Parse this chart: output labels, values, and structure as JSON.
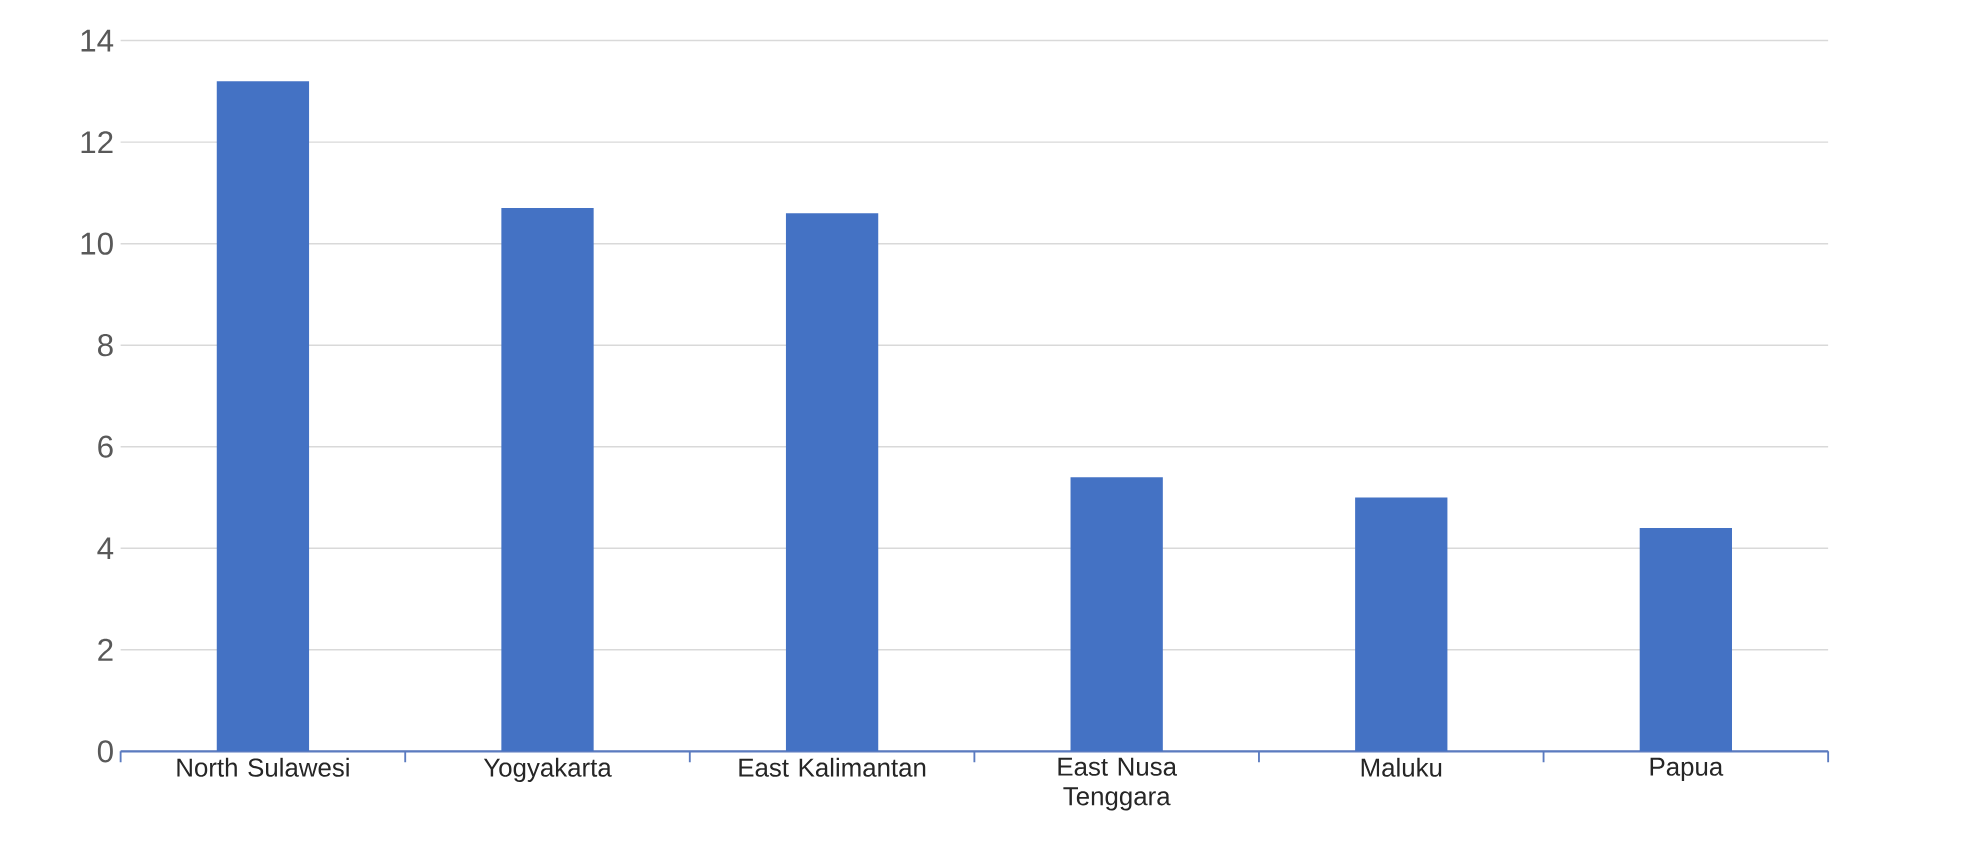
{
  "chart_data": {
    "type": "bar",
    "categories": [
      "North Sulawesi",
      "Yogyakarta",
      "East Kalimantan",
      "East Nusa Tenggara",
      "Maluku",
      "Papua"
    ],
    "values": [
      13.2,
      10.7,
      10.6,
      5.4,
      5.0,
      4.4
    ],
    "color": "#4472c4",
    "ylim": [
      0,
      14
    ],
    "yticks": [
      0,
      2,
      4,
      6,
      8,
      10,
      12,
      14
    ],
    "grid": "y"
  }
}
